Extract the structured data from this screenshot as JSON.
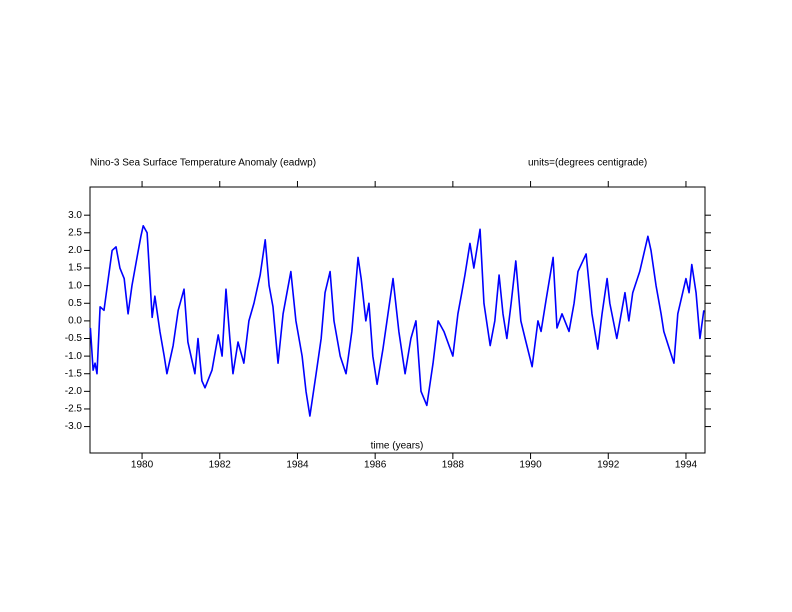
{
  "chart_data": {
    "type": "line",
    "title": "Nino-3 Sea Surface Temperature Anomaly (eadwp)",
    "subtitle": "units=(degrees centigrade)",
    "x_label": "time (years)",
    "color": "#0000ff",
    "x": [
      1978.67,
      1978.74,
      1978.79,
      1978.84,
      1978.92,
      1979.02,
      1979.13,
      1979.23,
      1979.33,
      1979.43,
      1979.54,
      1979.64,
      1979.74,
      1979.87,
      1979.97,
      1980.03,
      1980.13,
      1980.26,
      1980.33,
      1980.46,
      1980.57,
      1980.64,
      1980.8,
      1980.93,
      1981.08,
      1981.18,
      1981.36,
      1981.44,
      1981.54,
      1981.62,
      1981.8,
      1981.96,
      1982.06,
      1982.16,
      1982.26,
      1982.34,
      1982.47,
      1982.62,
      1982.75,
      1982.88,
      1983.04,
      1983.17,
      1983.27,
      1983.37,
      1983.5,
      1983.63,
      1983.73,
      1983.83,
      1983.96,
      1984.12,
      1984.22,
      1984.32,
      1984.48,
      1984.61,
      1984.71,
      1984.84,
      1984.94,
      1985.1,
      1985.25,
      1985.4,
      1985.56,
      1985.64,
      1985.76,
      1985.84,
      1985.94,
      1986.05,
      1986.2,
      1986.33,
      1986.46,
      1986.61,
      1986.77,
      1986.92,
      1987.05,
      1987.18,
      1987.33,
      1987.49,
      1987.62,
      1987.77,
      1988.0,
      1988.13,
      1988.23,
      1988.31,
      1988.44,
      1988.54,
      1988.7,
      1988.8,
      1988.96,
      1989.08,
      1989.19,
      1989.29,
      1989.39,
      1989.5,
      1989.62,
      1989.75,
      1989.86,
      1990.04,
      1990.19,
      1990.27,
      1990.4,
      1990.58,
      1990.68,
      1990.81,
      1990.99,
      1991.12,
      1991.22,
      1991.43,
      1991.58,
      1991.73,
      1991.84,
      1991.97,
      1992.04,
      1992.22,
      1992.43,
      1992.53,
      1992.63,
      1992.81,
      1993.02,
      1993.1,
      1993.23,
      1993.36,
      1993.43,
      1993.69,
      1993.79,
      1994.0,
      1994.08,
      1994.15,
      1994.26,
      1994.36,
      1994.46
    ],
    "values": [
      -0.2,
      -1.4,
      -1.2,
      -1.5,
      0.4,
      0.3,
      1.2,
      2.0,
      2.1,
      1.5,
      1.2,
      0.2,
      1.0,
      1.8,
      2.4,
      2.7,
      2.5,
      0.1,
      0.7,
      -0.3,
      -1.0,
      -1.5,
      -0.7,
      0.3,
      0.9,
      -0.6,
      -1.5,
      -0.5,
      -1.7,
      -1.9,
      -1.4,
      -0.4,
      -1.0,
      0.9,
      -0.5,
      -1.5,
      -0.6,
      -1.2,
      0.0,
      0.5,
      1.3,
      2.3,
      1.0,
      0.4,
      -1.2,
      0.2,
      0.8,
      1.4,
      0.0,
      -1.0,
      -2.0,
      -2.7,
      -1.5,
      -0.5,
      0.8,
      1.4,
      0.0,
      -1.0,
      -1.5,
      -0.3,
      1.8,
      1.2,
      0.0,
      0.5,
      -1.0,
      -1.8,
      -0.8,
      0.2,
      1.2,
      -0.3,
      -1.5,
      -0.5,
      0.0,
      -2.0,
      -2.4,
      -1.2,
      0.0,
      -0.3,
      -1.0,
      0.2,
      0.8,
      1.3,
      2.2,
      1.5,
      2.6,
      0.5,
      -0.7,
      0.0,
      1.3,
      0.2,
      -0.5,
      0.5,
      1.7,
      0.0,
      -0.5,
      -1.3,
      0.0,
      -0.3,
      0.6,
      1.8,
      -0.2,
      0.2,
      -0.3,
      0.5,
      1.4,
      1.9,
      0.2,
      -0.8,
      0.2,
      1.2,
      0.5,
      -0.5,
      0.8,
      0.0,
      0.8,
      1.4,
      2.4,
      2.0,
      1.0,
      0.2,
      -0.3,
      -1.2,
      0.2,
      1.2,
      0.8,
      1.6,
      0.8,
      -0.5,
      0.3
    ],
    "xlim": [
      1978.66,
      1994.49
    ],
    "xticks": [
      1980,
      1982,
      1984,
      1986,
      1988,
      1990,
      1992,
      1994
    ],
    "ylim": [
      -3.75,
      3.8
    ],
    "yticks": [
      {
        "value": 3,
        "label": "3.0"
      },
      {
        "value": 2.5,
        "label": "2.5"
      },
      {
        "value": 2,
        "label": "2.0"
      },
      {
        "value": 1.5,
        "label": "1.5"
      },
      {
        "value": 1,
        "label": "1.0"
      },
      {
        "value": 0.5,
        "label": "0.5"
      },
      {
        "value": 0,
        "label": "0.0"
      },
      {
        "value": -0.5,
        "label": "-0.5"
      },
      {
        "value": -1,
        "label": "-1.0"
      },
      {
        "value": -1.5,
        "label": "-1.5"
      },
      {
        "value": -2,
        "label": "-2.0"
      },
      {
        "value": -2.5,
        "label": "-2.5"
      },
      {
        "value": -3,
        "label": "-3.0"
      }
    ]
  }
}
